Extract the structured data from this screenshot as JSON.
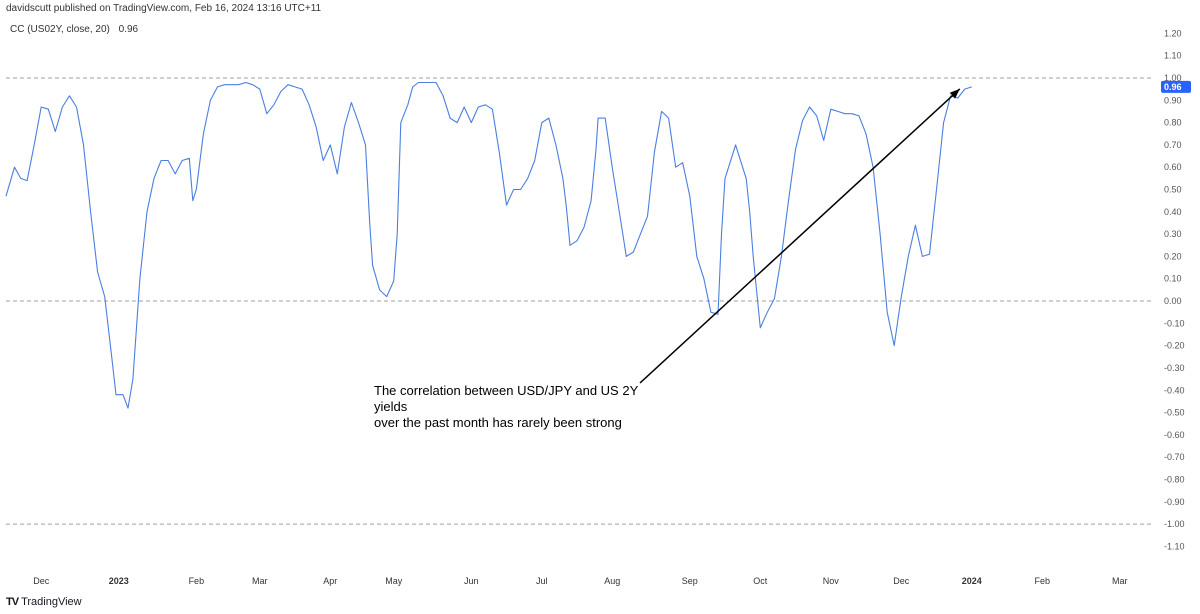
{
  "header": {
    "publisher_line": "davidscutt published on TradingView.com, Feb 16, 2024 13:16 UTC+11"
  },
  "indicator": {
    "label": "CC (US02Y, close, 20)",
    "value": "0.96"
  },
  "colors": {
    "line": "#4a7fe0",
    "last_value_bg": "#2962ff",
    "axis_text": "#555555",
    "dashed_level": "#9aa0a6"
  },
  "annotation": {
    "line1": "The correlation between USD/JPY and US 2Y yields",
    "line2": "over the past month has rarely been strong"
  },
  "footer": {
    "logo_mark": "TV",
    "brand": "TradingView"
  },
  "chart_data": {
    "type": "line",
    "title": "CC (US02Y, close, 20)",
    "series": [
      {
        "name": "CC (US02Y, close, 20)",
        "points": [
          [
            0,
            0.47
          ],
          [
            1.2,
            0.6
          ],
          [
            2.1,
            0.55
          ],
          [
            3,
            0.54
          ],
          [
            4,
            0.7
          ],
          [
            5,
            0.87
          ],
          [
            6,
            0.86
          ],
          [
            7,
            0.76
          ],
          [
            8,
            0.87
          ],
          [
            9,
            0.92
          ],
          [
            10,
            0.87
          ],
          [
            11,
            0.7
          ],
          [
            12,
            0.4
          ],
          [
            13,
            0.13
          ],
          [
            14,
            0.02
          ],
          [
            15,
            -0.25
          ],
          [
            15.6,
            -0.42
          ],
          [
            16.6,
            -0.42
          ],
          [
            17.3,
            -0.48
          ],
          [
            18,
            -0.35
          ],
          [
            19,
            0.1
          ],
          [
            20,
            0.4
          ],
          [
            21,
            0.55
          ],
          [
            22,
            0.63
          ],
          [
            23,
            0.63
          ],
          [
            24,
            0.57
          ],
          [
            25,
            0.63
          ],
          [
            26,
            0.64
          ],
          [
            26.5,
            0.45
          ],
          [
            27,
            0.5
          ],
          [
            28,
            0.75
          ],
          [
            29,
            0.9
          ],
          [
            30,
            0.96
          ],
          [
            31,
            0.97
          ],
          [
            32,
            0.97
          ],
          [
            33,
            0.97
          ],
          [
            34,
            0.98
          ],
          [
            35,
            0.97
          ],
          [
            36,
            0.95
          ],
          [
            37,
            0.84
          ],
          [
            38,
            0.88
          ],
          [
            39,
            0.94
          ],
          [
            40,
            0.97
          ],
          [
            41,
            0.96
          ],
          [
            42,
            0.95
          ],
          [
            43,
            0.88
          ],
          [
            44,
            0.78
          ],
          [
            45,
            0.63
          ],
          [
            46,
            0.7
          ],
          [
            47,
            0.57
          ],
          [
            48,
            0.78
          ],
          [
            49,
            0.89
          ],
          [
            50,
            0.8
          ],
          [
            51,
            0.7
          ],
          [
            51.6,
            0.35
          ],
          [
            52,
            0.16
          ],
          [
            53,
            0.05
          ],
          [
            54,
            0.02
          ],
          [
            55,
            0.09
          ],
          [
            55.5,
            0.3
          ],
          [
            56,
            0.8
          ],
          [
            57,
            0.88
          ],
          [
            57.7,
            0.96
          ],
          [
            58.5,
            0.98
          ],
          [
            60,
            0.98
          ],
          [
            61,
            0.98
          ],
          [
            62,
            0.92
          ],
          [
            63,
            0.82
          ],
          [
            64,
            0.8
          ],
          [
            65,
            0.87
          ],
          [
            66,
            0.8
          ],
          [
            67,
            0.87
          ],
          [
            68,
            0.88
          ],
          [
            69,
            0.86
          ],
          [
            70,
            0.66
          ],
          [
            71,
            0.43
          ],
          [
            72,
            0.5
          ],
          [
            73,
            0.5
          ],
          [
            74,
            0.55
          ],
          [
            75,
            0.63
          ],
          [
            76,
            0.8
          ],
          [
            77,
            0.82
          ],
          [
            78,
            0.7
          ],
          [
            79,
            0.55
          ],
          [
            79.5,
            0.42
          ],
          [
            80,
            0.25
          ],
          [
            81,
            0.27
          ],
          [
            82,
            0.33
          ],
          [
            83,
            0.45
          ],
          [
            83.7,
            0.68
          ],
          [
            84,
            0.82
          ],
          [
            85,
            0.82
          ],
          [
            86,
            0.6
          ],
          [
            87,
            0.4
          ],
          [
            88,
            0.2
          ],
          [
            89,
            0.22
          ],
          [
            90,
            0.3
          ],
          [
            91,
            0.38
          ],
          [
            92,
            0.67
          ],
          [
            93,
            0.85
          ],
          [
            94,
            0.82
          ],
          [
            95,
            0.6
          ],
          [
            96,
            0.62
          ],
          [
            97,
            0.47
          ],
          [
            98,
            0.2
          ],
          [
            99,
            0.1
          ],
          [
            100,
            -0.05
          ],
          [
            101,
            -0.06
          ],
          [
            101.5,
            0.3
          ],
          [
            102,
            0.55
          ],
          [
            103,
            0.65
          ],
          [
            103.5,
            0.7
          ],
          [
            104,
            0.65
          ],
          [
            105,
            0.55
          ],
          [
            105.5,
            0.4
          ],
          [
            106,
            0.2
          ],
          [
            107,
            -0.12
          ],
          [
            108,
            -0.05
          ],
          [
            109,
            0.01
          ],
          [
            110,
            0.2
          ],
          [
            111,
            0.45
          ],
          [
            112,
            0.68
          ],
          [
            113,
            0.81
          ],
          [
            114,
            0.87
          ],
          [
            115,
            0.83
          ],
          [
            116,
            0.72
          ],
          [
            117,
            0.86
          ],
          [
            118,
            0.85
          ],
          [
            119,
            0.84
          ],
          [
            120,
            0.84
          ],
          [
            121,
            0.83
          ],
          [
            122,
            0.75
          ],
          [
            123,
            0.6
          ],
          [
            124,
            0.3
          ],
          [
            125,
            -0.05
          ],
          [
            126,
            -0.2
          ],
          [
            127,
            0.02
          ],
          [
            128,
            0.2
          ],
          [
            129,
            0.34
          ],
          [
            130,
            0.2
          ],
          [
            131,
            0.21
          ],
          [
            132,
            0.5
          ],
          [
            133,
            0.8
          ],
          [
            134,
            0.92
          ],
          [
            135,
            0.91
          ],
          [
            136,
            0.95
          ],
          [
            137,
            0.96
          ]
        ]
      }
    ],
    "x_tick_labels": [
      "Dec",
      "2023",
      "Feb",
      "Mar",
      "Apr",
      "May",
      "Jun",
      "Jul",
      "Aug",
      "Sep",
      "Oct",
      "Nov",
      "Dec",
      "2024",
      "Feb",
      "Mar"
    ],
    "x_tick_positions": [
      5,
      16,
      27,
      36,
      46,
      55,
      66,
      76,
      86,
      97,
      107,
      117,
      127,
      137,
      147,
      158
    ],
    "x_range": [
      0,
      162
    ],
    "y_ticks": [
      "1.20",
      "1.10",
      "1.00",
      "0.90",
      "0.80",
      "0.70",
      "0.60",
      "0.50",
      "0.40",
      "0.30",
      "0.20",
      "0.10",
      "0.00",
      "-0.10",
      "-0.20",
      "-0.30",
      "-0.40",
      "-0.50",
      "-0.60",
      "-0.70",
      "-0.80",
      "-0.90",
      "-1.00",
      "-1.10"
    ],
    "y_range": [
      -1.17,
      1.26
    ],
    "dashed_levels": [
      1.0,
      0.0,
      -1.0
    ],
    "last_value": "0.96"
  }
}
